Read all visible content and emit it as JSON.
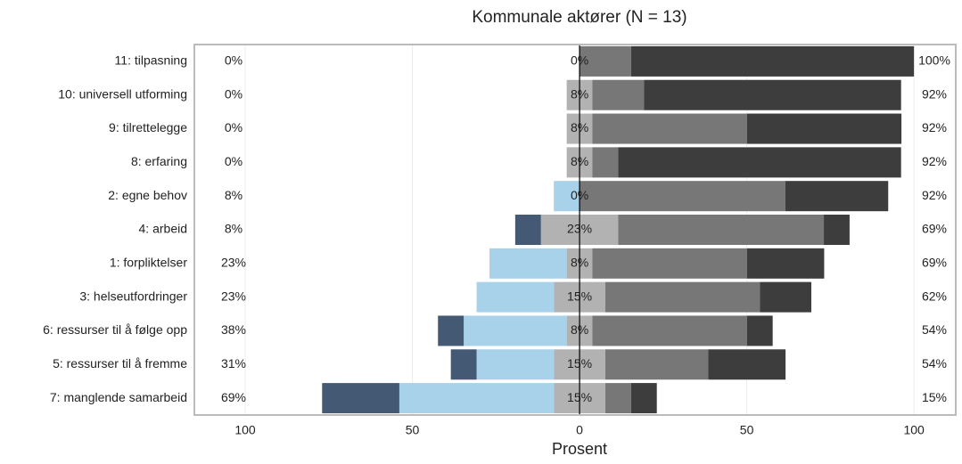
{
  "chart_data": {
    "type": "diverging_bar",
    "title": "Kommunale aktører (N = 13)",
    "x_label": "Prosent",
    "categories": [
      "11: tilpasning",
      "10: universell utforming",
      "9: tilrettelegge",
      "8: erfaring",
      "2: egne behov",
      "4: arbeid",
      "1: forpliktelser",
      "3: helseutfordringer",
      "6: ressurser til å følge opp",
      "5: ressurser til å fremme",
      "7: manglende samarbeid"
    ],
    "series": [
      {
        "color": "#445a74",
        "side": "far_left",
        "values": [
          0,
          0,
          0,
          0,
          0,
          7.7,
          0,
          0,
          7.7,
          7.7,
          23.1
        ]
      },
      {
        "color": "#a8d2ea",
        "side": "left",
        "values": [
          0,
          0,
          0,
          0,
          7.7,
          0,
          23.1,
          23.1,
          30.8,
          23.1,
          46.2
        ]
      },
      {
        "color": "#b2b2b2",
        "side": "center",
        "values": [
          0,
          7.7,
          7.7,
          7.7,
          0,
          23.1,
          7.7,
          15.4,
          7.7,
          15.4,
          15.4
        ]
      },
      {
        "color": "#777777",
        "side": "right",
        "values": [
          15.4,
          15.4,
          46.2,
          7.7,
          61.5,
          61.5,
          46.2,
          46.2,
          46.2,
          30.8,
          7.7
        ]
      },
      {
        "color": "#3d3d3d",
        "side": "far_right",
        "values": [
          84.6,
          76.9,
          46.2,
          84.6,
          30.8,
          7.7,
          23.1,
          15.4,
          7.7,
          23.1,
          7.7
        ]
      }
    ],
    "left_labels": [
      "0%",
      "0%",
      "0%",
      "0%",
      "8%",
      "8%",
      "23%",
      "23%",
      "38%",
      "31%",
      "69%"
    ],
    "center_labels": [
      "0%",
      "8%",
      "8%",
      "8%",
      "0%",
      "23%",
      "8%",
      "15%",
      "8%",
      "15%",
      "15%"
    ],
    "right_labels": [
      "100%",
      "92%",
      "92%",
      "92%",
      "92%",
      "69%",
      "69%",
      "62%",
      "54%",
      "54%",
      "15%"
    ],
    "xlim": [
      -115.2,
      112.5
    ],
    "xticks": [
      {
        "value": -100,
        "label": "100"
      },
      {
        "value": -50,
        "label": "50"
      },
      0,
      50,
      100
    ]
  }
}
